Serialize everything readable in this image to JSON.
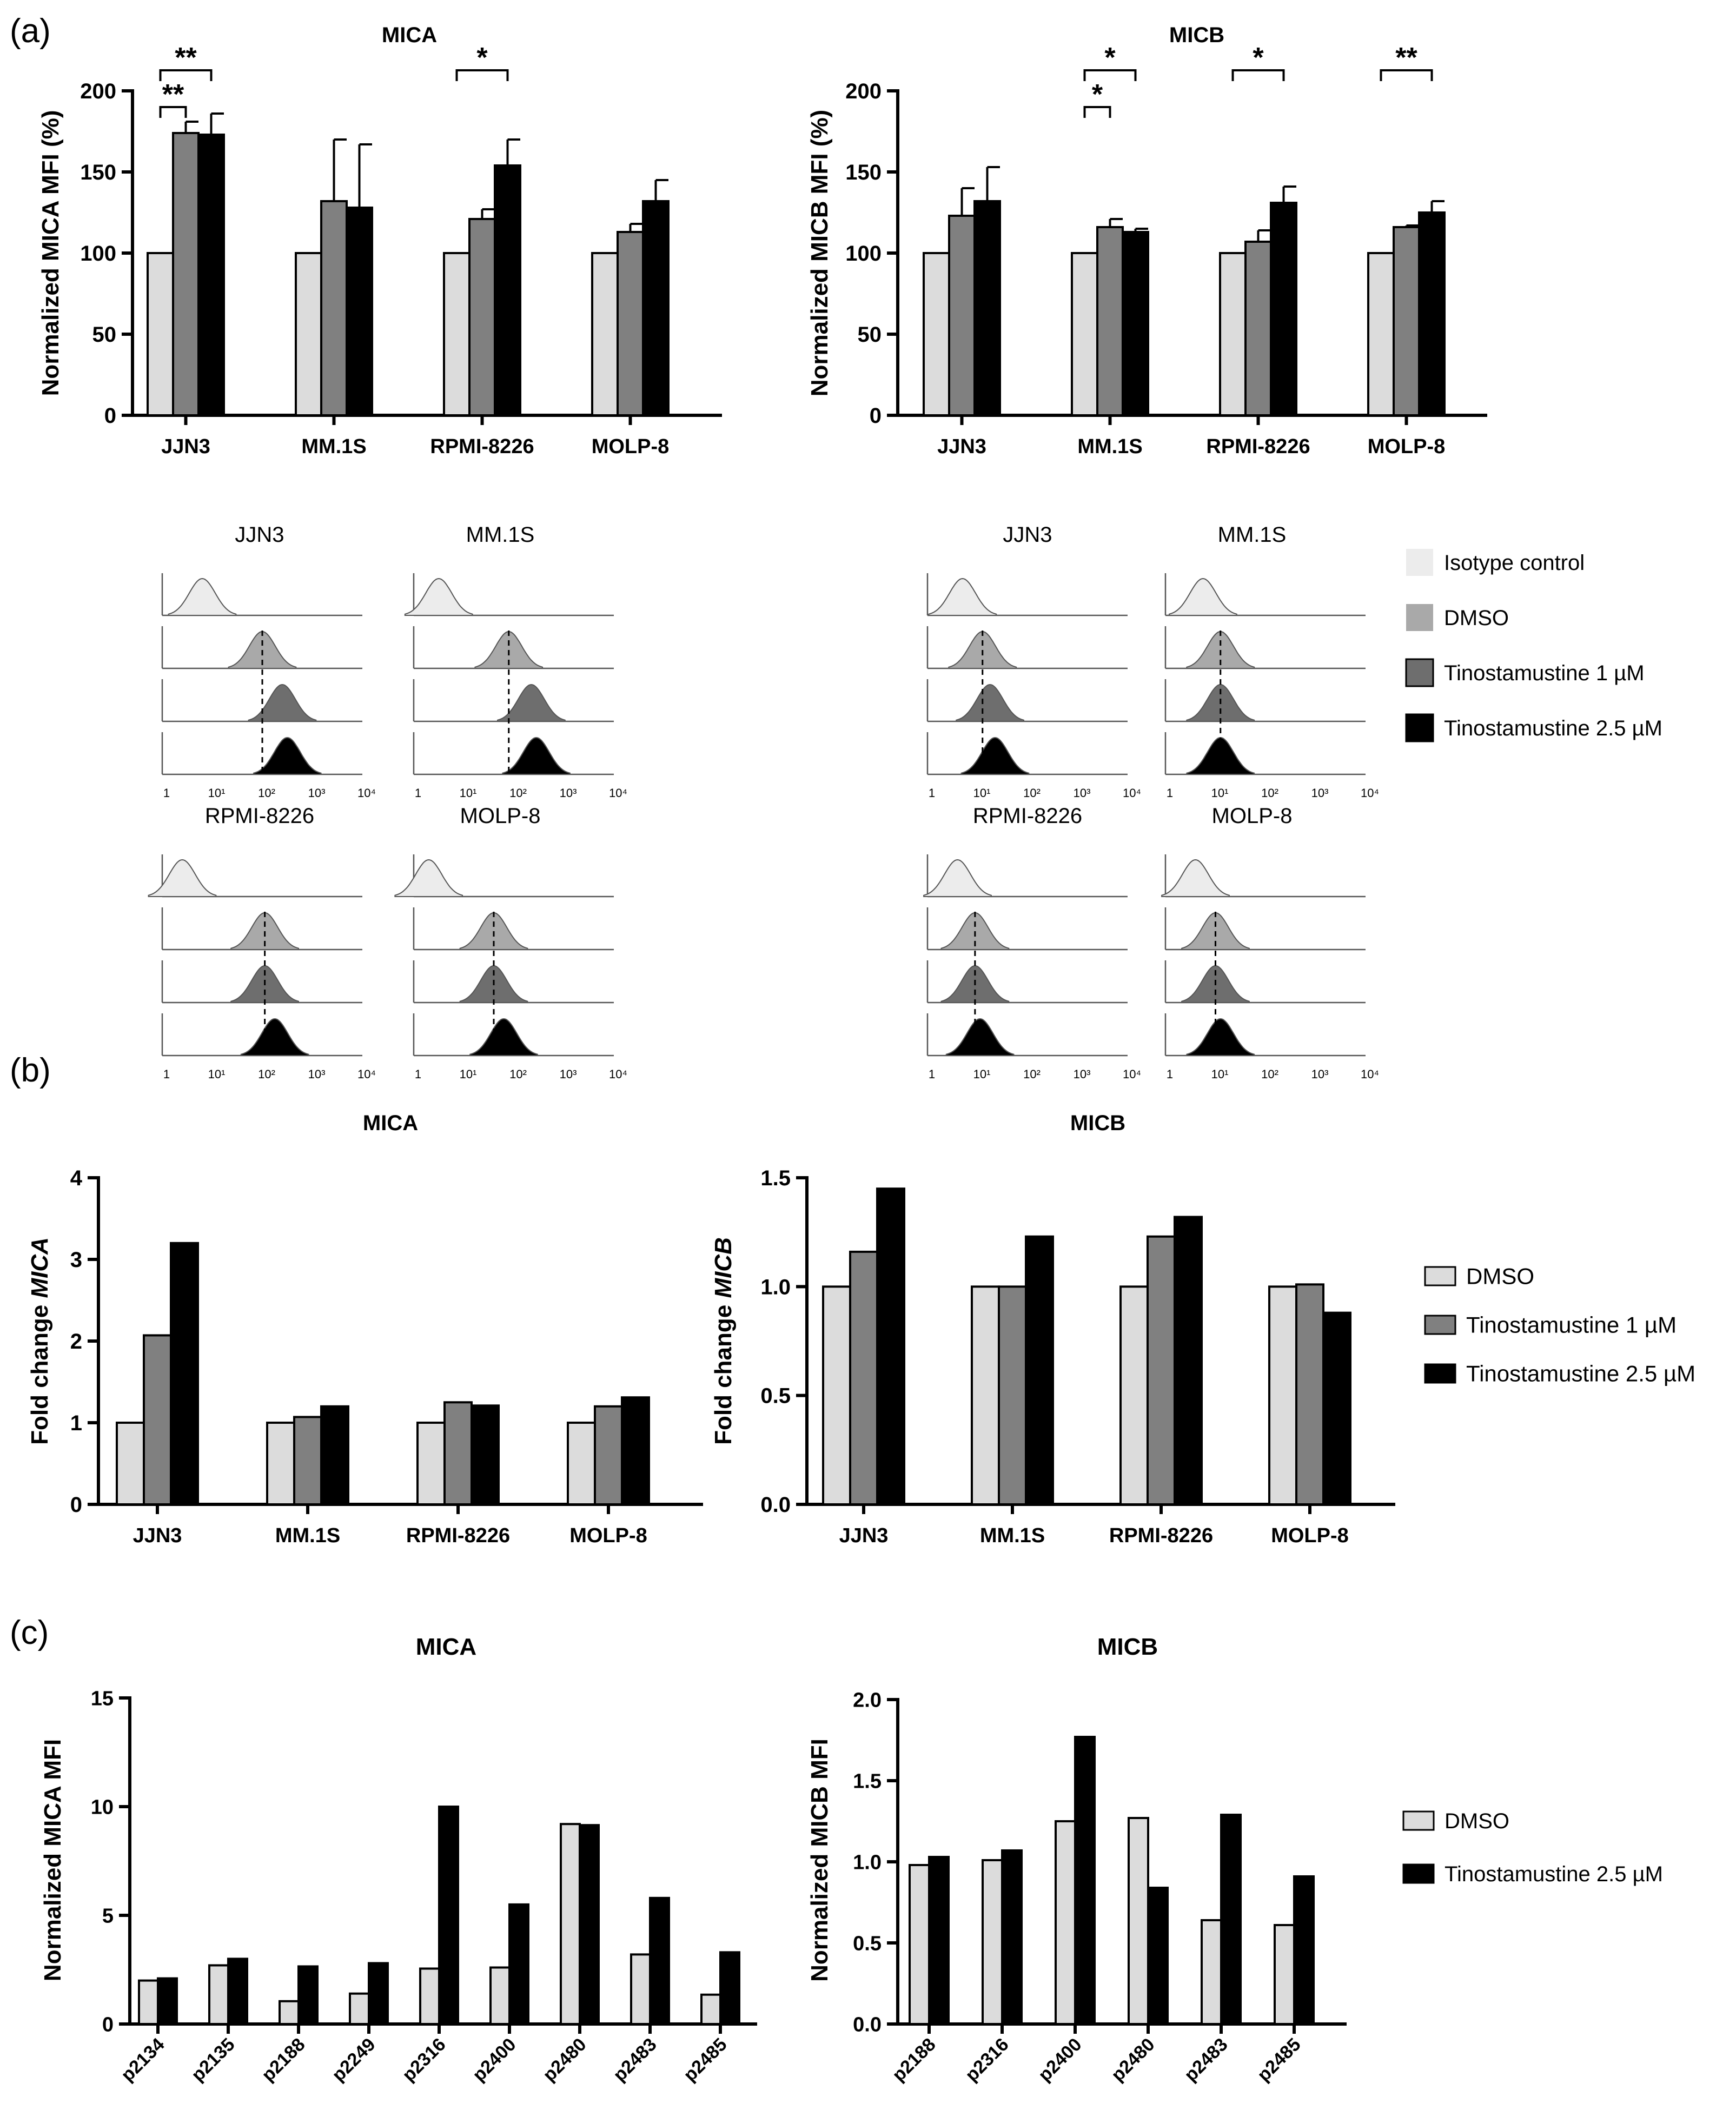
{
  "panel_labels": {
    "a": "(a)",
    "b": "(b)",
    "c": "(c)"
  },
  "colors": {
    "dmso": "#dcdcdc",
    "tino1": "#808080",
    "tino25": "#000000",
    "isotype": "#ececec",
    "hist_dmso": "#a9a9a9",
    "hist_tino1": "#6e6e6e"
  },
  "histograms": {
    "x_ticks": [
      "1",
      "10¹",
      "10²",
      "10³",
      "10⁴"
    ],
    "left_panels": [
      "JJN3",
      "MM.1S",
      "RPMI-8226",
      "MOLP-8"
    ],
    "right_panels": [
      "JJN3",
      "MM.1S",
      "RPMI-8226",
      "MOLP-8"
    ],
    "peaks_log10_MICA": {
      "JJN3": [
        0.8,
        2.0,
        2.4,
        2.5
      ],
      "MM.1S": [
        0.5,
        1.9,
        2.35,
        2.45
      ],
      "RPMI-8226": [
        0.4,
        2.05,
        2.05,
        2.25
      ],
      "MOLP-8": [
        0.3,
        1.6,
        1.6,
        1.8
      ]
    },
    "peaks_log10_MICB": {
      "JJN3": [
        0.7,
        1.1,
        1.25,
        1.35
      ],
      "MM.1S": [
        0.75,
        1.1,
        1.1,
        1.1
      ],
      "RPMI-8226": [
        0.6,
        0.95,
        0.95,
        1.05
      ],
      "MOLP-8": [
        0.6,
        1.0,
        1.0,
        1.1
      ]
    },
    "legend": [
      "Isotype control",
      "DMSO",
      "Tinostamustine 1 µM",
      "Tinostamustine 2.5 µM"
    ]
  },
  "legend_b": [
    "DMSO",
    "Tinostamustine 1 µM",
    "Tinostamustine 2.5 µM"
  ],
  "legend_c": [
    "DMSO",
    "Tinostamustine 2.5 µM"
  ],
  "chart_data": [
    {
      "id": "a_mica",
      "type": "bar",
      "title": "MICA",
      "xlabel": "",
      "ylabel": "Normalized MICA MFI (%)",
      "ylim": [
        0,
        200
      ],
      "yticks": [
        "0",
        "50",
        "100",
        "150",
        "200"
      ],
      "categories": [
        "JJN3",
        "MM.1S",
        "RPMI-8226",
        "MOLP-8"
      ],
      "series": [
        {
          "name": "DMSO",
          "values": [
            100,
            100,
            100,
            100
          ],
          "err": [
            0,
            0,
            0,
            0
          ]
        },
        {
          "name": "Tinostamustine 1 µM",
          "values": [
            174,
            132,
            121,
            113
          ],
          "err": [
            7,
            38,
            6,
            5
          ]
        },
        {
          "name": "Tinostamustine 2.5 µM",
          "values": [
            173,
            128,
            154,
            132
          ],
          "err": [
            13,
            39,
            16,
            13
          ]
        }
      ],
      "significance": [
        {
          "group": 0,
          "from": 0,
          "to": 1,
          "label": "**",
          "level": 1
        },
        {
          "group": 0,
          "from": 0,
          "to": 2,
          "label": "**",
          "level": 2
        },
        {
          "group": 2,
          "from": 0,
          "to": 2,
          "label": "*",
          "level": 2
        }
      ]
    },
    {
      "id": "a_micb",
      "type": "bar",
      "title": "MICB",
      "xlabel": "",
      "ylabel": "Normalized MICB MFI (%)",
      "ylim": [
        0,
        200
      ],
      "yticks": [
        "0",
        "50",
        "100",
        "150",
        "200"
      ],
      "categories": [
        "JJN3",
        "MM.1S",
        "RPMI-8226",
        "MOLP-8"
      ],
      "series": [
        {
          "name": "DMSO",
          "values": [
            100,
            100,
            100,
            100
          ],
          "err": [
            0,
            0,
            0,
            0
          ]
        },
        {
          "name": "Tinostamustine 1 µM",
          "values": [
            123,
            116,
            107,
            116
          ],
          "err": [
            17,
            5,
            7,
            1
          ]
        },
        {
          "name": "Tinostamustine 2.5 µM",
          "values": [
            132,
            113,
            131,
            125
          ],
          "err": [
            21,
            2,
            10,
            7
          ]
        }
      ],
      "significance": [
        {
          "group": 1,
          "from": 0,
          "to": 1,
          "label": "*",
          "level": 1
        },
        {
          "group": 1,
          "from": 0,
          "to": 2,
          "label": "*",
          "level": 2
        },
        {
          "group": 2,
          "from": 0,
          "to": 2,
          "label": "*",
          "level": 2
        },
        {
          "group": 3,
          "from": 0,
          "to": 2,
          "label": "**",
          "level": 2
        }
      ]
    },
    {
      "id": "b_mica",
      "type": "bar",
      "title": "MICA",
      "xlabel": "",
      "ylabel_prefix": "Fold change ",
      "ylabel_italic": "MICA",
      "ylim": [
        0,
        4
      ],
      "yticks": [
        "0",
        "1",
        "2",
        "3",
        "4"
      ],
      "categories": [
        "JJN3",
        "MM.1S",
        "RPMI-8226",
        "MOLP-8"
      ],
      "series": [
        {
          "name": "DMSO",
          "values": [
            1.0,
            1.0,
            1.0,
            1.0
          ]
        },
        {
          "name": "Tinostamustine 1 µM",
          "values": [
            2.07,
            1.07,
            1.25,
            1.2
          ]
        },
        {
          "name": "Tinostamustine 2.5 µM",
          "values": [
            3.2,
            1.2,
            1.21,
            1.31
          ]
        }
      ]
    },
    {
      "id": "b_micb",
      "type": "bar",
      "title": "MICB",
      "xlabel": "",
      "ylabel_prefix": "Fold change ",
      "ylabel_italic": "MICB",
      "ylim": [
        0,
        1.5
      ],
      "yticks": [
        "0.0",
        "0.5",
        "1.0",
        "1.5"
      ],
      "categories": [
        "JJN3",
        "MM.1S",
        "RPMI-8226",
        "MOLP-8"
      ],
      "series": [
        {
          "name": "DMSO",
          "values": [
            1.0,
            1.0,
            1.0,
            1.0
          ]
        },
        {
          "name": "Tinostamustine 1 µM",
          "values": [
            1.16,
            1.0,
            1.23,
            1.01
          ]
        },
        {
          "name": "Tinostamustine 2.5 µM",
          "values": [
            1.45,
            1.23,
            1.32,
            0.88
          ]
        }
      ]
    },
    {
      "id": "c_mica",
      "type": "bar",
      "title": "MICA",
      "xlabel": "",
      "ylabel": "Normalized MICA MFI",
      "ylim": [
        0,
        15
      ],
      "yticks": [
        "0",
        "5",
        "10",
        "15"
      ],
      "categories": [
        "p2134",
        "p2135",
        "p2188",
        "p2249",
        "p2316",
        "p2400",
        "p2480",
        "p2483",
        "p2485"
      ],
      "series": [
        {
          "name": "DMSO",
          "values": [
            2.0,
            2.7,
            1.05,
            1.4,
            2.55,
            2.6,
            9.2,
            3.2,
            1.35
          ]
        },
        {
          "name": "Tinostamustine 2.5 µM",
          "values": [
            2.1,
            3.0,
            2.65,
            2.8,
            10.0,
            5.5,
            9.15,
            5.8,
            3.3
          ]
        }
      ]
    },
    {
      "id": "c_micb",
      "type": "bar",
      "title": "MICB",
      "xlabel": "",
      "ylabel": "Normalized MICB MFI",
      "ylim": [
        0,
        2.0
      ],
      "yticks": [
        "0.0",
        "0.5",
        "1.0",
        "1.5",
        "2.0"
      ],
      "categories": [
        "p2188",
        "p2316",
        "p2400",
        "p2480",
        "p2483",
        "p2485"
      ],
      "series": [
        {
          "name": "DMSO",
          "values": [
            0.98,
            1.01,
            1.25,
            1.27,
            0.64,
            0.61
          ]
        },
        {
          "name": "Tinostamustine 2.5 µM",
          "values": [
            1.03,
            1.07,
            1.77,
            0.84,
            1.29,
            0.91
          ]
        }
      ]
    }
  ]
}
